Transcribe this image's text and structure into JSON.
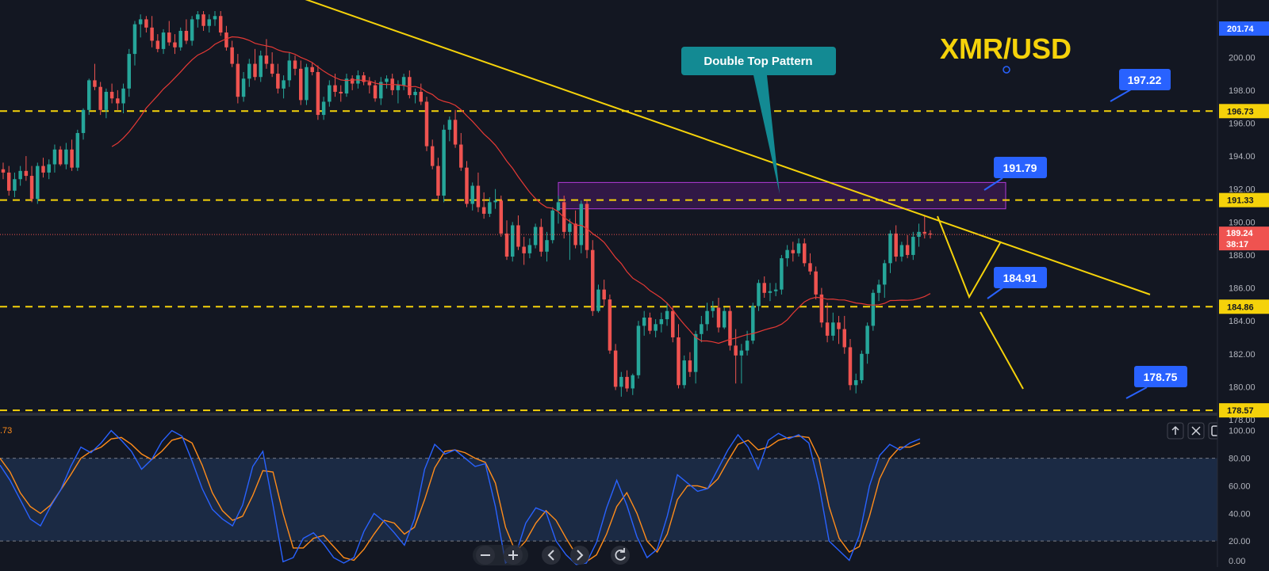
{
  "chart_data": {
    "type": "candlestick",
    "symbol_label": "XMR/USD",
    "annotation": "Double Top Pattern",
    "price_axis": {
      "ylim": [
        178.0,
        202.8
      ],
      "ticks": [
        "178.00",
        "180.00",
        "182.00",
        "184.00",
        "186.00",
        "188.00",
        "190.00",
        "192.00",
        "194.00",
        "196.00",
        "198.00",
        "200.00"
      ]
    },
    "indicator_axis": {
      "ylim": [
        0,
        105
      ],
      "ticks": [
        "0.00",
        "20.00",
        "40.00",
        "60.00",
        "80.00",
        "100.00"
      ],
      "level_lines": [
        20,
        80
      ],
      "partial_value_label": ".73"
    },
    "horizontal_levels": [
      {
        "price": 196.73,
        "label": "196.73"
      },
      {
        "price": 191.33,
        "label": "191.33"
      },
      {
        "price": 184.86,
        "label": "184.86"
      },
      {
        "price": 178.57,
        "label": "178.57"
      }
    ],
    "callouts": [
      {
        "label": "197.22",
        "price": 197.22
      },
      {
        "label": "191.79",
        "price": 191.79
      },
      {
        "label": "184.91",
        "price": 184.91
      },
      {
        "label": "178.75",
        "price": 178.75
      }
    ],
    "axis_price_tags": [
      {
        "label": "201.74",
        "price": 201.74,
        "color": "#2962ff"
      },
      {
        "label": "196.73",
        "price": 196.73,
        "color": "#f5d20a"
      },
      {
        "label": "191.33",
        "price": 191.33,
        "color": "#f5d20a"
      },
      {
        "label": "184.86",
        "price": 184.86,
        "color": "#f5d20a"
      },
      {
        "label": "178.57",
        "price": 178.57,
        "color": "#f5d20a"
      }
    ],
    "last_price": {
      "label": "189.24",
      "countdown": "38:17",
      "price": 189.24
    },
    "resistance_zone": {
      "from": 190.8,
      "to": 192.4
    },
    "trendline": {
      "from_price": 203.6,
      "to_price": 185.6
    },
    "candles": [
      [
        193.2,
        193.6,
        192.6,
        193.0
      ],
      [
        193.0,
        193.4,
        191.6,
        191.9
      ],
      [
        191.9,
        193.0,
        191.5,
        192.6
      ],
      [
        192.6,
        193.4,
        192.2,
        193.1
      ],
      [
        193.1,
        194.0,
        192.5,
        192.8
      ],
      [
        192.8,
        193.4,
        191.2,
        191.4
      ],
      [
        191.4,
        193.6,
        191.1,
        193.4
      ],
      [
        193.4,
        193.9,
        192.7,
        193.0
      ],
      [
        193.0,
        193.8,
        192.6,
        193.5
      ],
      [
        193.5,
        194.7,
        193.0,
        194.4
      ],
      [
        194.4,
        194.6,
        193.4,
        193.5
      ],
      [
        193.5,
        194.8,
        193.2,
        194.4
      ],
      [
        194.4,
        195.0,
        193.1,
        193.3
      ],
      [
        193.3,
        195.6,
        193.1,
        195.4
      ],
      [
        195.4,
        196.9,
        195.0,
        196.8
      ],
      [
        196.8,
        198.7,
        196.5,
        198.6
      ],
      [
        198.6,
        199.6,
        198.0,
        198.2
      ],
      [
        198.2,
        198.5,
        196.5,
        196.8
      ],
      [
        196.8,
        198.1,
        196.3,
        197.9
      ],
      [
        197.9,
        198.4,
        197.2,
        197.5
      ],
      [
        197.5,
        198.0,
        196.8,
        197.2
      ],
      [
        197.2,
        198.4,
        196.6,
        198.1
      ],
      [
        198.1,
        200.5,
        197.6,
        200.2
      ],
      [
        200.2,
        202.2,
        199.5,
        202.0
      ],
      [
        202.0,
        202.6,
        201.2,
        202.3
      ],
      [
        202.3,
        202.5,
        201.5,
        201.8
      ],
      [
        201.8,
        202.5,
        200.6,
        201.0
      ],
      [
        201.0,
        201.4,
        200.3,
        200.5
      ],
      [
        200.5,
        201.7,
        200.2,
        201.5
      ],
      [
        201.5,
        202.2,
        200.7,
        200.9
      ],
      [
        200.9,
        201.4,
        200.2,
        200.6
      ],
      [
        200.6,
        201.8,
        200.4,
        201.6
      ],
      [
        201.6,
        202.3,
        200.8,
        201.0
      ],
      [
        201.0,
        202.5,
        200.7,
        202.3
      ],
      [
        202.3,
        202.8,
        201.8,
        202.6
      ],
      [
        202.6,
        202.8,
        201.6,
        201.9
      ],
      [
        201.9,
        202.6,
        201.5,
        202.3
      ],
      [
        202.3,
        202.8,
        201.9,
        202.5
      ],
      [
        202.5,
        202.8,
        201.3,
        201.5
      ],
      [
        201.5,
        201.9,
        200.4,
        200.6
      ],
      [
        200.6,
        201.0,
        199.4,
        199.6
      ],
      [
        199.6,
        200.2,
        197.2,
        197.6
      ],
      [
        197.6,
        199.1,
        197.3,
        198.7
      ],
      [
        198.7,
        199.9,
        198.2,
        199.6
      ],
      [
        199.6,
        200.5,
        198.6,
        198.8
      ],
      [
        198.8,
        200.4,
        198.5,
        200.1
      ],
      [
        200.1,
        201.1,
        199.3,
        199.6
      ],
      [
        199.6,
        200.3,
        198.8,
        199.0
      ],
      [
        199.0,
        199.6,
        197.8,
        198.1
      ],
      [
        198.1,
        198.9,
        197.5,
        198.6
      ],
      [
        198.6,
        200.3,
        198.2,
        199.8
      ],
      [
        199.8,
        200.1,
        198.9,
        199.3
      ],
      [
        199.3,
        199.8,
        197.1,
        197.4
      ],
      [
        197.4,
        199.6,
        197.1,
        199.4
      ],
      [
        199.4,
        199.7,
        198.9,
        199.1
      ],
      [
        199.1,
        199.5,
        196.2,
        196.5
      ],
      [
        196.5,
        197.6,
        196.2,
        197.3
      ],
      [
        197.3,
        198.6,
        197.0,
        198.3
      ],
      [
        198.3,
        199.0,
        197.6,
        197.9
      ],
      [
        197.9,
        198.3,
        197.3,
        197.8
      ],
      [
        197.8,
        199.0,
        197.6,
        198.7
      ],
      [
        198.7,
        198.9,
        198.0,
        198.4
      ],
      [
        198.4,
        199.2,
        198.1,
        198.9
      ],
      [
        198.9,
        199.1,
        198.3,
        198.5
      ],
      [
        198.5,
        198.8,
        197.8,
        198.3
      ],
      [
        198.3,
        198.6,
        197.3,
        197.5
      ],
      [
        197.5,
        198.8,
        197.1,
        198.5
      ],
      [
        198.5,
        198.9,
        198.1,
        198.7
      ],
      [
        198.7,
        199.0,
        197.7,
        198.0
      ],
      [
        198.0,
        198.6,
        197.2,
        198.3
      ],
      [
        198.3,
        199.0,
        198.0,
        198.8
      ],
      [
        198.8,
        199.2,
        197.5,
        197.7
      ],
      [
        197.7,
        198.1,
        197.2,
        197.9
      ],
      [
        197.9,
        198.4,
        197.1,
        197.3
      ],
      [
        197.3,
        197.6,
        194.3,
        194.6
      ],
      [
        194.6,
        195.0,
        193.2,
        193.4
      ],
      [
        193.4,
        193.9,
        191.4,
        191.6
      ],
      [
        191.6,
        195.9,
        191.2,
        195.6
      ],
      [
        195.6,
        196.4,
        194.9,
        196.2
      ],
      [
        196.2,
        196.8,
        194.5,
        194.7
      ],
      [
        194.7,
        195.4,
        193.1,
        193.3
      ],
      [
        193.3,
        193.7,
        190.9,
        191.1
      ],
      [
        191.1,
        192.4,
        190.7,
        192.2
      ],
      [
        192.2,
        193.0,
        190.6,
        190.9
      ],
      [
        190.9,
        191.8,
        190.2,
        190.5
      ],
      [
        190.5,
        191.5,
        190.3,
        191.2
      ],
      [
        191.2,
        192.0,
        190.8,
        191.3
      ],
      [
        191.3,
        191.6,
        189.1,
        189.3
      ],
      [
        189.3,
        190.1,
        187.7,
        187.9
      ],
      [
        187.9,
        190.0,
        187.6,
        189.8
      ],
      [
        189.8,
        190.4,
        188.3,
        188.5
      ],
      [
        188.5,
        189.1,
        187.4,
        188.1
      ],
      [
        188.1,
        189.0,
        187.8,
        188.6
      ],
      [
        188.6,
        189.9,
        188.4,
        189.7
      ],
      [
        189.7,
        190.2,
        187.9,
        188.2
      ],
      [
        188.2,
        189.4,
        187.6,
        188.9
      ],
      [
        188.9,
        190.9,
        188.7,
        190.7
      ],
      [
        190.7,
        191.6,
        189.9,
        191.2
      ],
      [
        191.2,
        191.6,
        189.0,
        189.4
      ],
      [
        189.4,
        190.2,
        187.7,
        189.9
      ],
      [
        189.9,
        190.7,
        188.4,
        188.6
      ],
      [
        188.6,
        191.3,
        188.1,
        191.1
      ],
      [
        191.1,
        191.3,
        187.8,
        188.3
      ],
      [
        188.3,
        188.9,
        184.3,
        184.6
      ],
      [
        184.6,
        186.2,
        184.5,
        185.9
      ],
      [
        185.9,
        186.5,
        184.9,
        185.3
      ],
      [
        185.3,
        185.6,
        182.0,
        182.2
      ],
      [
        182.2,
        182.6,
        179.8,
        180.0
      ],
      [
        180.0,
        180.9,
        179.4,
        180.6
      ],
      [
        180.6,
        181.0,
        179.7,
        179.9
      ],
      [
        179.9,
        180.8,
        179.5,
        180.7
      ],
      [
        180.7,
        184.0,
        180.5,
        183.7
      ],
      [
        183.7,
        184.6,
        183.1,
        184.2
      ],
      [
        184.2,
        184.5,
        183.2,
        183.4
      ],
      [
        183.4,
        184.1,
        183.0,
        183.8
      ],
      [
        183.8,
        184.5,
        183.3,
        184.1
      ],
      [
        184.1,
        185.1,
        183.7,
        184.6
      ],
      [
        184.6,
        184.9,
        182.7,
        183.0
      ],
      [
        183.0,
        183.8,
        179.9,
        180.1
      ],
      [
        180.1,
        181.9,
        179.9,
        181.6
      ],
      [
        181.6,
        182.1,
        180.6,
        180.9
      ],
      [
        180.9,
        183.4,
        180.2,
        183.2
      ],
      [
        183.2,
        184.3,
        182.7,
        183.8
      ],
      [
        183.8,
        185.1,
        183.4,
        184.6
      ],
      [
        184.6,
        185.2,
        184.2,
        184.8
      ],
      [
        184.8,
        185.4,
        183.3,
        183.6
      ],
      [
        183.6,
        184.8,
        183.5,
        184.6
      ],
      [
        184.6,
        184.9,
        182.2,
        182.5
      ],
      [
        182.5,
        183.5,
        180.2,
        181.9
      ],
      [
        181.9,
        182.6,
        180.2,
        182.2
      ],
      [
        182.2,
        183.4,
        181.9,
        182.8
      ],
      [
        182.8,
        185.1,
        182.6,
        184.9
      ],
      [
        184.9,
        186.5,
        184.6,
        186.3
      ],
      [
        186.3,
        186.7,
        185.4,
        185.7
      ],
      [
        185.7,
        186.3,
        185.2,
        185.8
      ],
      [
        185.8,
        186.3,
        185.5,
        185.9
      ],
      [
        185.9,
        188.0,
        185.6,
        187.8
      ],
      [
        187.8,
        188.6,
        187.3,
        188.3
      ],
      [
        188.3,
        188.8,
        187.6,
        188.1
      ],
      [
        188.1,
        189.0,
        187.9,
        188.7
      ],
      [
        188.7,
        189.0,
        187.3,
        187.5
      ],
      [
        187.5,
        188.1,
        186.8,
        187.0
      ],
      [
        187.0,
        187.3,
        185.3,
        185.6
      ],
      [
        185.6,
        186.0,
        183.6,
        183.9
      ],
      [
        183.9,
        185.1,
        182.7,
        183.1
      ],
      [
        183.1,
        184.5,
        182.8,
        183.9
      ],
      [
        183.9,
        184.3,
        182.6,
        183.5
      ],
      [
        183.5,
        184.3,
        182.0,
        182.4
      ],
      [
        182.4,
        182.9,
        179.8,
        180.1
      ],
      [
        180.1,
        180.8,
        179.6,
        180.4
      ],
      [
        180.4,
        182.2,
        180.2,
        182.0
      ],
      [
        182.0,
        183.9,
        181.4,
        183.7
      ],
      [
        183.7,
        185.9,
        183.4,
        185.7
      ],
      [
        185.7,
        186.5,
        185.2,
        186.2
      ],
      [
        186.2,
        187.7,
        185.4,
        187.5
      ],
      [
        187.5,
        189.5,
        186.9,
        189.3
      ],
      [
        189.3,
        189.8,
        187.6,
        187.9
      ],
      [
        187.9,
        188.8,
        187.6,
        188.6
      ],
      [
        188.6,
        189.2,
        187.8,
        188.0
      ],
      [
        188.0,
        189.4,
        187.7,
        189.1
      ],
      [
        189.1,
        189.9,
        188.5,
        189.4
      ],
      [
        189.4,
        190.4,
        189.0,
        189.3
      ],
      [
        189.3,
        189.5,
        189.0,
        189.24
      ]
    ],
    "stochastic": {
      "k": [
        75,
        64,
        50,
        36,
        31,
        45,
        57,
        74,
        88,
        84,
        91,
        100,
        93,
        85,
        72,
        79,
        92,
        100,
        96,
        78,
        58,
        43,
        36,
        31,
        46,
        74,
        85,
        46,
        5,
        8,
        22,
        26,
        18,
        8,
        4,
        8,
        27,
        40,
        34,
        26,
        17,
        36,
        72,
        90,
        83,
        86,
        80,
        74,
        76,
        45,
        4,
        10,
        33,
        44,
        41,
        20,
        10,
        3,
        4,
        19,
        44,
        64,
        46,
        23,
        8,
        14,
        38,
        68,
        62,
        56,
        58,
        72,
        86,
        97,
        88,
        72,
        93,
        98,
        94,
        97,
        91,
        61,
        20,
        13,
        6,
        24,
        60,
        82,
        90,
        86,
        91,
        94
      ],
      "d": [
        80,
        70,
        55,
        45,
        40,
        46,
        57,
        68,
        80,
        85,
        88,
        94,
        95,
        90,
        83,
        79,
        85,
        93,
        95,
        91,
        75,
        55,
        42,
        35,
        38,
        53,
        71,
        70,
        40,
        15,
        15,
        22,
        24,
        16,
        8,
        6,
        14,
        25,
        35,
        33,
        25,
        30,
        50,
        73,
        85,
        86,
        84,
        80,
        77,
        62,
        30,
        12,
        20,
        33,
        42,
        35,
        22,
        10,
        5,
        10,
        25,
        45,
        55,
        40,
        20,
        12,
        25,
        50,
        60,
        60,
        58,
        65,
        78,
        90,
        93,
        86,
        88,
        93,
        95,
        96,
        95,
        80,
        45,
        22,
        12,
        16,
        38,
        65,
        80,
        88,
        88,
        91
      ],
      "k_color": "#2962ff",
      "d_color": "#ff8c1a"
    },
    "colors": {
      "up": "#26a69a",
      "down": "#ef5350",
      "sma": "#e53935",
      "levels": "#f5d20a",
      "callout": "#2962ff",
      "pattern_label_bg": "#138a93",
      "zone_fill": "#6a1b8a",
      "zone_border": "#b03ad8",
      "last_price": "#ef5350"
    },
    "grid": false,
    "legend": "none"
  }
}
